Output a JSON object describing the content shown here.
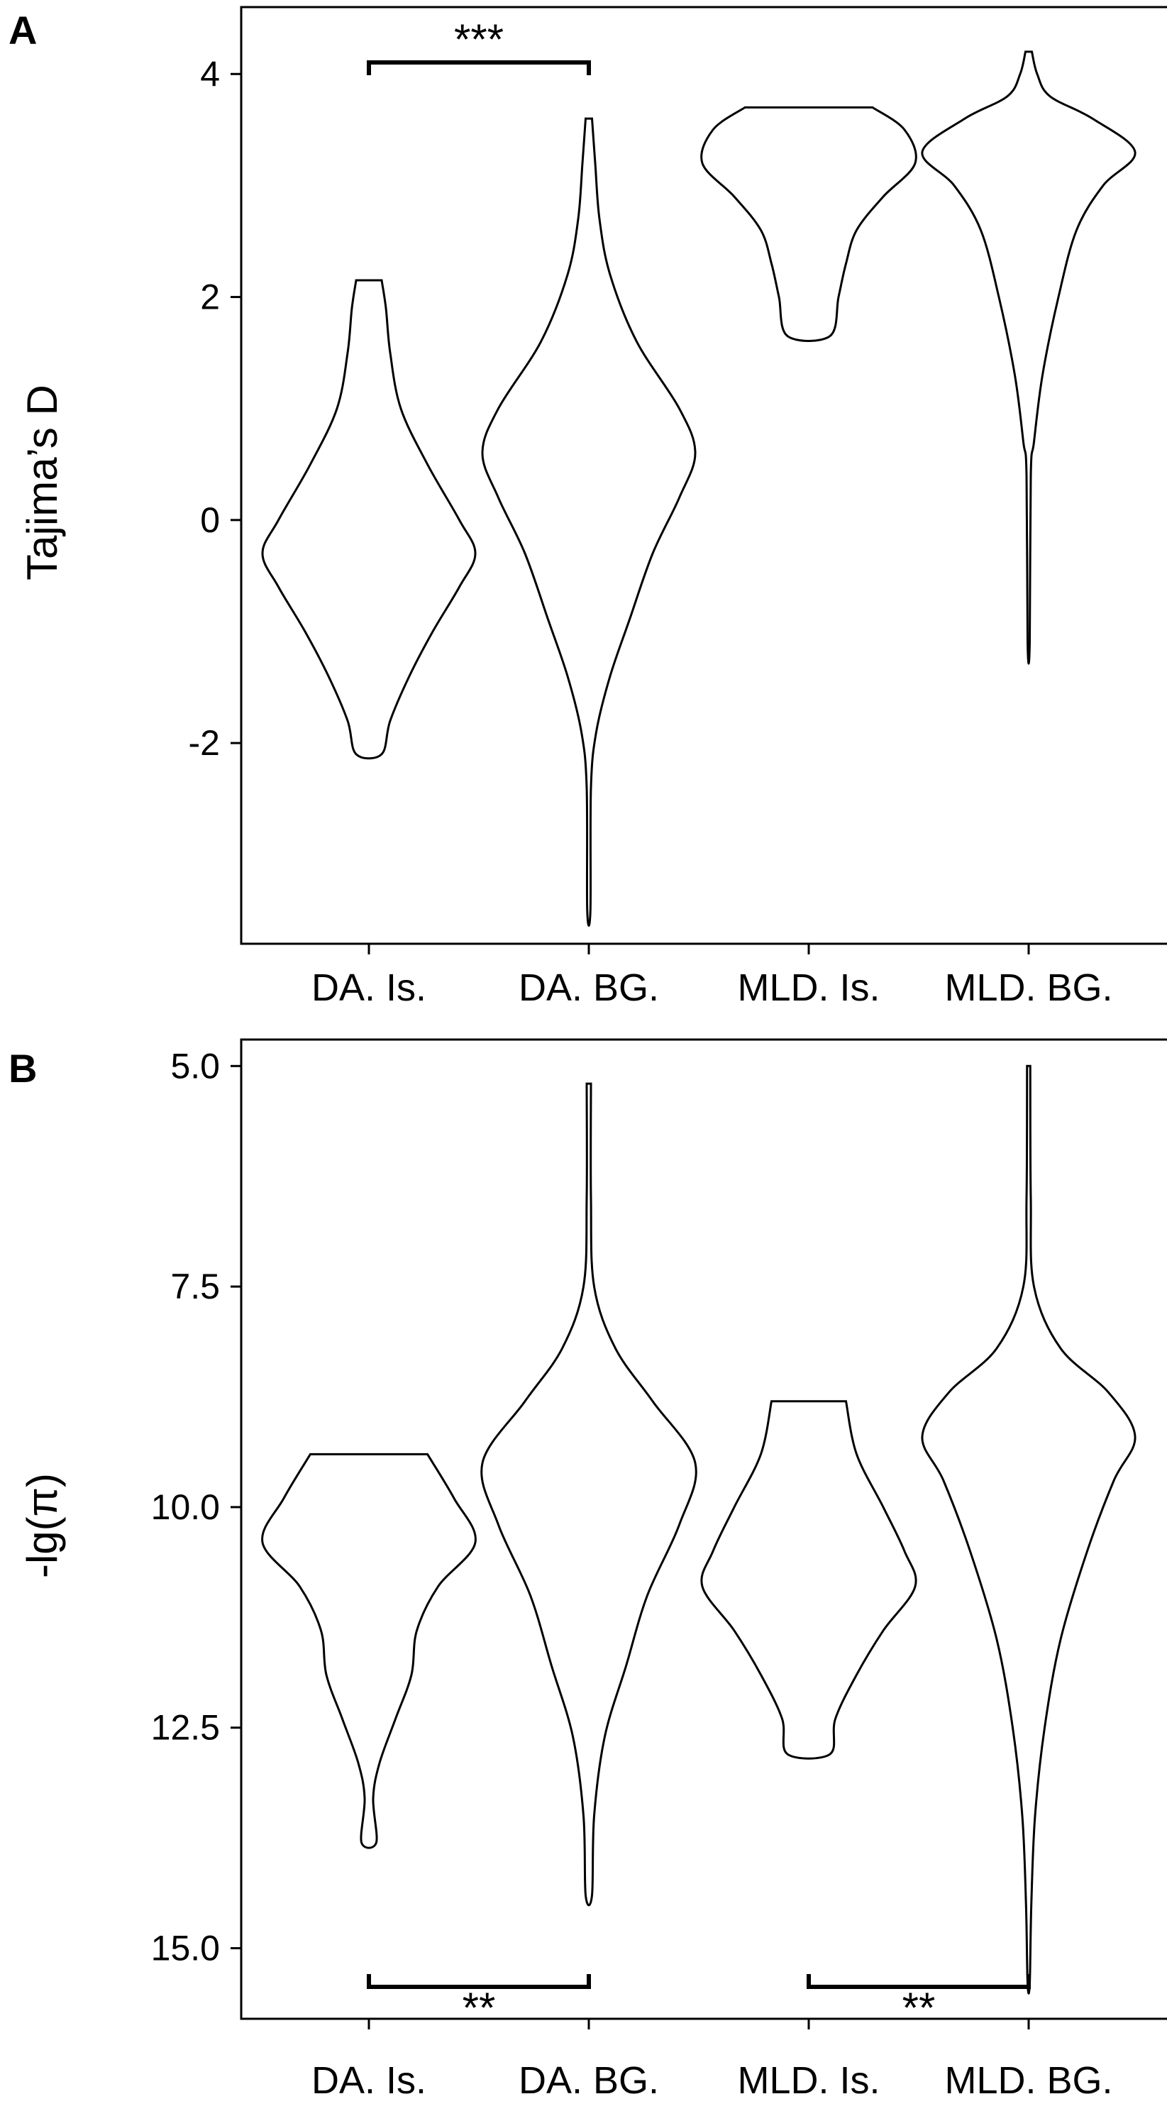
{
  "chart_data": [
    {
      "panel_label": "A",
      "type": "violin",
      "ylabel": "Tajima’s D",
      "categories": [
        "DA. Is.",
        "DA. BG.",
        "MLD. Is.",
        "MLD. BG."
      ],
      "yticks": [
        "4",
        "2",
        "0",
        "-2"
      ],
      "ylim": [
        -3.8,
        4.6
      ],
      "y_inverted": false,
      "series": [
        {
          "category": "DA. Is.",
          "profile": [
            [
              2.15,
              0.12
            ],
            [
              1.9,
              0.16
            ],
            [
              1.5,
              0.2
            ],
            [
              1.0,
              0.3
            ],
            [
              0.5,
              0.55
            ],
            [
              0.0,
              0.85
            ],
            [
              -0.3,
              1.0
            ],
            [
              -0.6,
              0.85
            ],
            [
              -1.0,
              0.6
            ],
            [
              -1.4,
              0.38
            ],
            [
              -1.8,
              0.2
            ],
            [
              -2.1,
              0.12
            ]
          ]
        },
        {
          "category": "DA. BG.",
          "profile": [
            [
              3.6,
              0.03
            ],
            [
              3.2,
              0.06
            ],
            [
              2.7,
              0.1
            ],
            [
              2.2,
              0.2
            ],
            [
              1.6,
              0.45
            ],
            [
              1.0,
              0.85
            ],
            [
              0.6,
              1.0
            ],
            [
              0.2,
              0.85
            ],
            [
              -0.3,
              0.6
            ],
            [
              -0.9,
              0.38
            ],
            [
              -1.4,
              0.2
            ],
            [
              -1.9,
              0.07
            ],
            [
              -2.4,
              0.02
            ],
            [
              -3.5,
              0.015
            ]
          ]
        },
        {
          "category": "MLD. Is.",
          "profile": [
            [
              3.7,
              0.6
            ],
            [
              3.5,
              0.9
            ],
            [
              3.2,
              1.0
            ],
            [
              2.9,
              0.7
            ],
            [
              2.6,
              0.45
            ],
            [
              2.3,
              0.35
            ],
            [
              2.0,
              0.28
            ],
            [
              1.65,
              0.2
            ]
          ]
        },
        {
          "category": "MLD. BG.",
          "profile": [
            [
              4.2,
              0.03
            ],
            [
              4.0,
              0.08
            ],
            [
              3.8,
              0.2
            ],
            [
              3.6,
              0.6
            ],
            [
              3.3,
              1.0
            ],
            [
              3.0,
              0.7
            ],
            [
              2.6,
              0.45
            ],
            [
              2.0,
              0.28
            ],
            [
              1.3,
              0.13
            ],
            [
              0.7,
              0.05
            ],
            [
              0.4,
              0.02
            ],
            [
              -1.1,
              0.01
            ]
          ]
        }
      ],
      "annotations": [
        {
          "text": "***",
          "from": "DA. Is.",
          "to": "DA. BG.",
          "position": "top"
        }
      ]
    },
    {
      "panel_label": "B",
      "type": "violin",
      "ylabel": "-lg(π)",
      "categories": [
        "DA. Is.",
        "DA. BG.",
        "MLD. Is.",
        "MLD. BG."
      ],
      "yticks": [
        "5.0",
        "7.5",
        "10.0",
        "12.5",
        "15.0"
      ],
      "ylim": [
        4.7,
        15.8
      ],
      "y_inverted": true,
      "series": [
        {
          "category": "DA. Is.",
          "profile": [
            [
              9.4,
              0.55
            ],
            [
              9.9,
              0.8
            ],
            [
              10.4,
              1.0
            ],
            [
              10.9,
              0.65
            ],
            [
              11.4,
              0.45
            ],
            [
              11.9,
              0.4
            ],
            [
              12.4,
              0.25
            ],
            [
              12.9,
              0.1
            ],
            [
              13.3,
              0.04
            ],
            [
              13.8,
              0.07
            ]
          ]
        },
        {
          "category": "DA. BG.",
          "profile": [
            [
              5.2,
              0.02
            ],
            [
              6.5,
              0.02
            ],
            [
              7.5,
              0.05
            ],
            [
              8.2,
              0.25
            ],
            [
              8.8,
              0.6
            ],
            [
              9.5,
              1.0
            ],
            [
              10.2,
              0.85
            ],
            [
              11.0,
              0.55
            ],
            [
              11.8,
              0.35
            ],
            [
              12.6,
              0.15
            ],
            [
              13.5,
              0.05
            ],
            [
              14.4,
              0.03
            ]
          ]
        },
        {
          "category": "MLD. Is.",
          "profile": [
            [
              8.8,
              0.35
            ],
            [
              9.4,
              0.45
            ],
            [
              10.0,
              0.7
            ],
            [
              10.5,
              0.9
            ],
            [
              10.9,
              1.0
            ],
            [
              11.4,
              0.7
            ],
            [
              11.9,
              0.45
            ],
            [
              12.4,
              0.25
            ],
            [
              12.8,
              0.2
            ]
          ]
        },
        {
          "category": "MLD. BG.",
          "profile": [
            [
              5.0,
              0.015
            ],
            [
              6.5,
              0.02
            ],
            [
              7.5,
              0.05
            ],
            [
              8.2,
              0.3
            ],
            [
              8.7,
              0.75
            ],
            [
              9.2,
              1.0
            ],
            [
              9.7,
              0.8
            ],
            [
              10.5,
              0.55
            ],
            [
              11.5,
              0.3
            ],
            [
              12.5,
              0.15
            ],
            [
              13.5,
              0.06
            ],
            [
              14.5,
              0.025
            ],
            [
              15.4,
              0.01
            ]
          ]
        }
      ],
      "annotations": [
        {
          "text": "**",
          "from": "DA. Is.",
          "to": "DA. BG.",
          "position": "bottom"
        },
        {
          "text": "**",
          "from": "MLD. Is.",
          "to": "MLD. BG.",
          "position": "bottom"
        }
      ]
    }
  ]
}
